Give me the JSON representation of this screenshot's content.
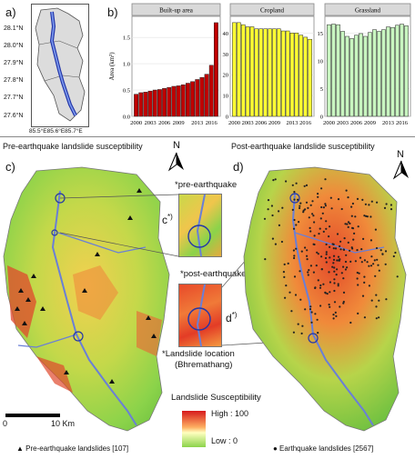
{
  "panel_a": {
    "letter": "a)",
    "lat_ticks": [
      "28.1°N",
      "28.0°N",
      "27.9°N",
      "27.8°N",
      "27.7°N",
      "27.6°N"
    ],
    "lon_ticks": "85.5°E85.6°E85.7°E"
  },
  "panel_b": {
    "letter": "b)"
  },
  "chart_data": [
    {
      "type": "bar",
      "title": "Built-up area",
      "ylabel": "Area (km²)",
      "color": "#c00000",
      "x": [
        2000,
        2001,
        2002,
        2003,
        2004,
        2005,
        2006,
        2007,
        2008,
        2009,
        2010,
        2011,
        2012,
        2013,
        2014,
        2015,
        2016,
        2017
      ],
      "values": [
        0.42,
        0.45,
        0.46,
        0.48,
        0.5,
        0.51,
        0.53,
        0.55,
        0.57,
        0.58,
        0.6,
        0.63,
        0.66,
        0.7,
        0.74,
        0.8,
        0.97,
        1.78
      ],
      "ylim": [
        0,
        1.9
      ],
      "y_ticks": [
        0.0,
        0.5,
        1.0,
        1.5
      ],
      "x_tick_labels": [
        "2000",
        "2003",
        "2006",
        "2009",
        "2013",
        "2016"
      ]
    },
    {
      "type": "bar",
      "title": "Cropland",
      "color": "#ffff33",
      "x": [
        2000,
        2001,
        2002,
        2003,
        2004,
        2005,
        2006,
        2007,
        2008,
        2009,
        2010,
        2011,
        2012,
        2013,
        2014,
        2015,
        2016,
        2017
      ],
      "values": [
        45,
        45,
        44,
        43,
        43,
        42,
        42,
        42,
        42,
        42,
        42,
        41,
        41,
        40,
        40,
        39,
        38,
        37
      ],
      "ylim": [
        0,
        48
      ],
      "y_ticks": [
        0,
        10,
        20,
        30,
        40
      ],
      "x_tick_labels": [
        "2000",
        "2003",
        "2006",
        "2009",
        "2013",
        "2016"
      ]
    },
    {
      "type": "bar",
      "title": "Grassland",
      "color": "#c8f5c0",
      "x": [
        2000,
        2001,
        2002,
        2003,
        2004,
        2005,
        2006,
        2007,
        2008,
        2009,
        2010,
        2011,
        2012,
        2013,
        2014,
        2015,
        2016,
        2017
      ],
      "values": [
        16.5,
        16.6,
        16.5,
        15.3,
        14.4,
        14.0,
        14.6,
        14.9,
        14.4,
        15.1,
        15.6,
        15.3,
        15.6,
        16.1,
        16.0,
        16.4,
        16.6,
        16.3
      ],
      "ylim": [
        0,
        18
      ],
      "y_ticks": [
        0,
        5,
        10,
        15
      ],
      "x_tick_labels": [
        "2000",
        "2003",
        "2006",
        "2009",
        "2013",
        "2016"
      ]
    }
  ],
  "panel_c": {
    "letter": "c)",
    "title": "Pre-earthquake landslide susceptibility",
    "north": "N",
    "scale_left": "0",
    "scale_right": "10 Km",
    "legend_note": "▲ Pre-earthquake landslides [107]"
  },
  "panel_d": {
    "letter": "d)",
    "title": "Post-earthquake landslide susceptibility",
    "north": "N",
    "legend_note": "● Earthquake landslides [2567]"
  },
  "insets": {
    "pre_label": "*pre-earthquake",
    "post_label": "*post-earthquake",
    "c_star": "c",
    "d_star": "d",
    "star": "*)",
    "location_line1": "*Landslide location",
    "location_line2": "(Bhremathang)"
  },
  "legend": {
    "title": "Landslide Susceptibility",
    "high": "High : 100",
    "low": "Low : 0"
  },
  "colors": {
    "high": "#d7191c",
    "mid": "#fdae61",
    "low": "#8bd34a",
    "river": "#6a7fd6",
    "points": "#222222"
  }
}
